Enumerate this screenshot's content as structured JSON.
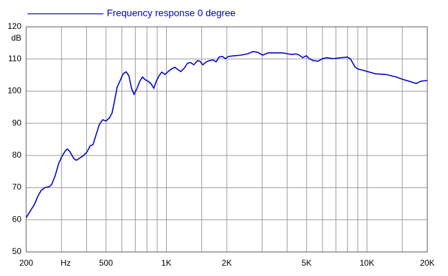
{
  "chart_data": {
    "type": "line",
    "y_label": "dB",
    "log_x": true,
    "grid": true,
    "xlim": [
      200,
      20000
    ],
    "xticks": [
      200,
      {
        "value": 300,
        "label": "Hz"
      },
      500,
      {
        "value": 1000,
        "label": "1K"
      },
      {
        "value": 2000,
        "label": "2K"
      },
      {
        "value": 5000,
        "label": "5K"
      },
      {
        "value": 10000,
        "label": "10K"
      },
      {
        "value": 20000,
        "label": "20K"
      }
    ],
    "x_minor_ticks": [
      400,
      600,
      700,
      800,
      900,
      1500,
      3000,
      4000,
      6000,
      7000,
      8000,
      9000,
      15000
    ],
    "ylim": [
      50,
      120
    ],
    "yticks": [
      50,
      60,
      70,
      80,
      90,
      100,
      110,
      120
    ],
    "legend": "top-left",
    "x": [
      200,
      211,
      220,
      229,
      238,
      248,
      261,
      268,
      279,
      290,
      300,
      314,
      321,
      330,
      346,
      356,
      370,
      385,
      401,
      417,
      431,
      445,
      463,
      481,
      500,
      520,
      536,
      551,
      568,
      592,
      609,
      630,
      650,
      670,
      690,
      714,
      737,
      760,
      786,
      810,
      836,
      866,
      890,
      920,
      948,
      986,
      1020,
      1060,
      1103,
      1140,
      1180,
      1230,
      1275,
      1320,
      1370,
      1430,
      1470,
      1520,
      1580,
      1640,
      1710,
      1770,
      1830,
      1900,
      1970,
      2040,
      2170,
      2350,
      2540,
      2700,
      2850,
      3020,
      3210,
      3470,
      3790,
      4030,
      4260,
      4420,
      4600,
      4780,
      4990,
      5160,
      5400,
      5700,
      6000,
      6300,
      6800,
      7400,
      8000,
      8300,
      8700,
      9000,
      9800,
      11000,
      12400,
      14000,
      15000,
      16200,
      17600,
      18600,
      20000
    ],
    "series": [
      {
        "name": "Frequency response 0 degree",
        "color": "#0000cc",
        "values": [
          60.7,
          63,
          64.8,
          67.4,
          69.2,
          70,
          70.3,
          71,
          73.7,
          77.4,
          79.5,
          81.5,
          82,
          81.2,
          79,
          78.5,
          79.2,
          79.9,
          81,
          83,
          83.4,
          86.2,
          89.6,
          91.1,
          90.7,
          91.7,
          93.2,
          96.9,
          101.2,
          103.7,
          105.4,
          106,
          104.8,
          100.9,
          99,
          100.9,
          103.1,
          104.4,
          103.5,
          103.1,
          102.4,
          100.9,
          103.1,
          104.8,
          105.9,
          105.2,
          106.1,
          106.9,
          107.4,
          106.7,
          106.1,
          107.2,
          108.7,
          108.9,
          108.2,
          109.5,
          109.3,
          108.2,
          109.1,
          109.5,
          109.7,
          109.1,
          110.6,
          110.8,
          110.1,
          110.8,
          111,
          111.2,
          111.6,
          112.3,
          112.1,
          111.2,
          111.9,
          111.9,
          111.9,
          111.6,
          111.4,
          111.6,
          111.2,
          110.4,
          111,
          110.1,
          109.5,
          109.3,
          110.1,
          110.4,
          110.1,
          110.4,
          110.6,
          109.9,
          107.6,
          106.9,
          106.3,
          105.4,
          105.2,
          104.4,
          103.7,
          103.1,
          102.4,
          103.1,
          103.3
        ]
      }
    ]
  }
}
